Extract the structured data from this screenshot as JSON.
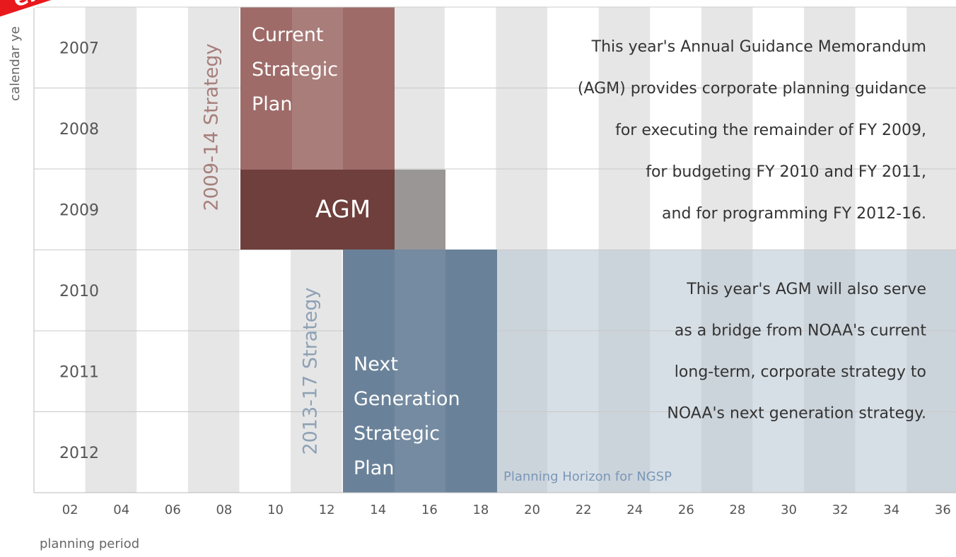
{
  "badge": "elop",
  "y_axis_label": "calendar ye",
  "x_axis_label": "planning period",
  "years": [
    "2007",
    "2008",
    "2009",
    "2010",
    "2011",
    "2012"
  ],
  "periods": [
    "02",
    "04",
    "06",
    "08",
    "10",
    "12",
    "14",
    "16",
    "18",
    "20",
    "22",
    "24",
    "26",
    "28",
    "30",
    "32",
    "34",
    "36"
  ],
  "blocks": {
    "current_plan": "Current\nStrategic\nPlan",
    "agm": "AGM",
    "next_plan": "Next\nGeneration\nStrategic\nPlan"
  },
  "strategies": {
    "first": "2009-14  Strategy",
    "second": "2013-17  Strategy"
  },
  "horizon_label": "Planning Horizon for NGSP",
  "paragraph1": [
    "This year's Annual Guidance Memorandum",
    "(AGM) provides corporate planning guidance",
    "for executing the remainder of  FY 2009,",
    "for budgeting FY 2010 and  FY 2011,",
    "and for programming FY 2012-16."
  ],
  "paragraph2": [
    "This year's AGM will also serve",
    "as a bridge from NOAA's current",
    "long-term, corporate strategy to",
    "NOAA's next generation strategy."
  ]
}
